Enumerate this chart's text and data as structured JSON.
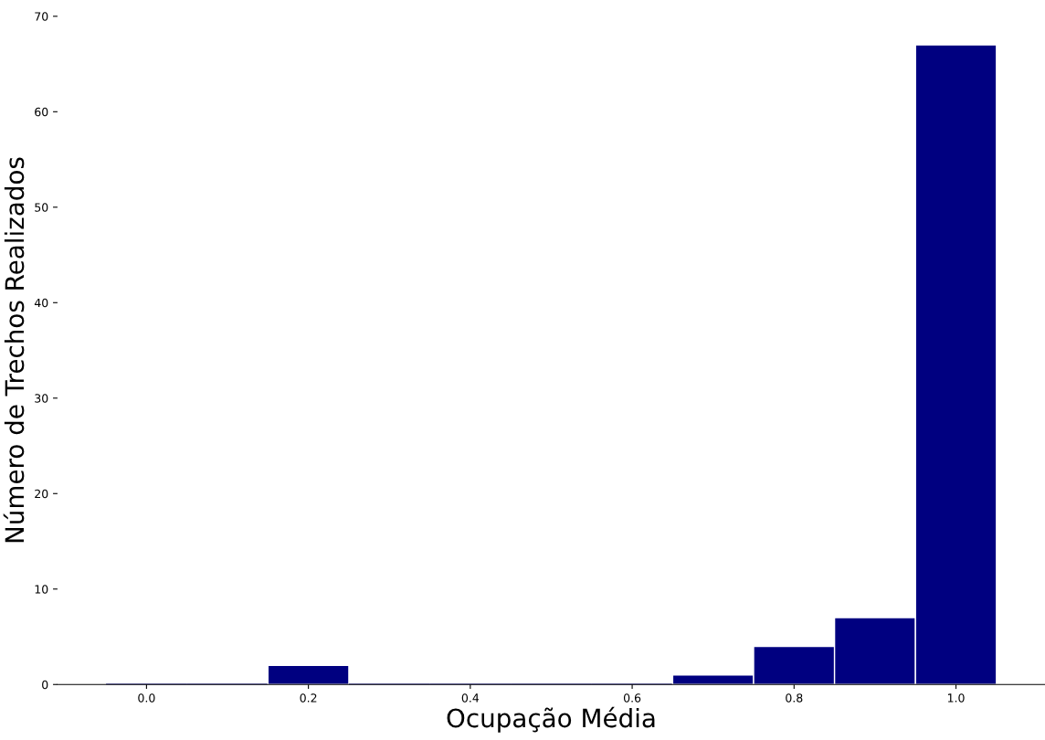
{
  "chart_data": {
    "type": "histogram",
    "xlabel": "Ocupação Média",
    "ylabel": "Número de Trechos Realizados",
    "bins": [
      -0.05,
      0.05,
      0.15,
      0.25,
      0.35,
      0.45,
      0.55,
      0.65,
      0.75,
      0.85,
      0.95,
      1.05
    ],
    "values": [
      0,
      0,
      2,
      0,
      0,
      0,
      0,
      1,
      4,
      7,
      67
    ],
    "color": "#000080",
    "xlim": [
      -0.11,
      1.11
    ],
    "xticks": [
      {
        "value": 0,
        "label": "0.0"
      },
      0.2,
      0.4,
      0.6,
      0.8,
      {
        "value": 1,
        "label": "1.0"
      }
    ],
    "ylim": [
      0,
      70
    ],
    "yticks": [
      0,
      10,
      20,
      30,
      40,
      50,
      60,
      70
    ],
    "grid": false
  }
}
